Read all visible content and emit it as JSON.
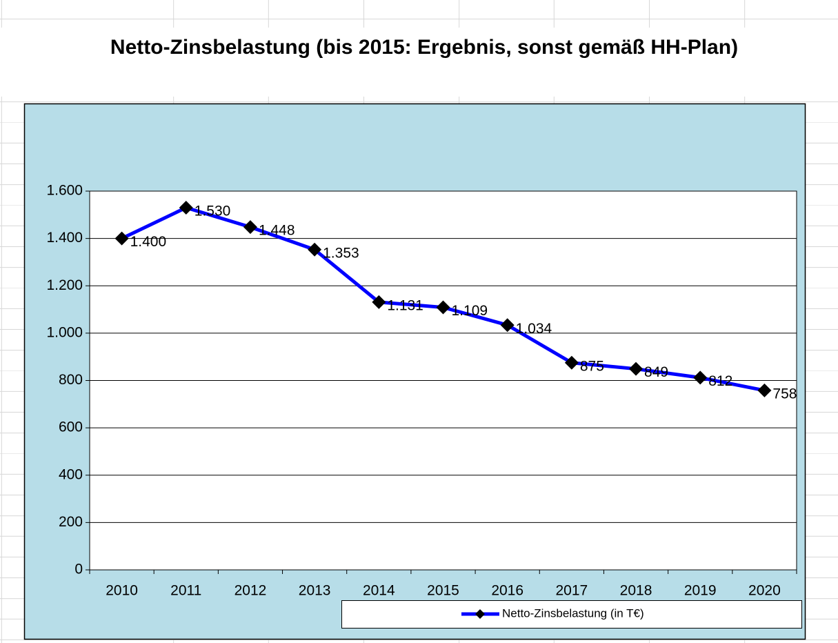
{
  "chart_data": {
    "type": "line",
    "title": "Netto-Zinsbelastung (bis 2015: Ergebnis, sonst gemäß HH-Plan)",
    "categories": [
      "2010",
      "2011",
      "2012",
      "2013",
      "2014",
      "2015",
      "2016",
      "2017",
      "2018",
      "2019",
      "2020"
    ],
    "series": [
      {
        "name": "Netto-Zinsbelastung (in T€)",
        "color": "#0000ff",
        "values": [
          1400,
          1530,
          1448,
          1353,
          1131,
          1109,
          1034,
          875,
          849,
          812,
          758
        ],
        "value_labels": [
          "1.400",
          "1.530",
          "1.448",
          "1.353",
          "1.131",
          "1.109",
          "1.034",
          "875",
          "849",
          "812",
          "758"
        ]
      }
    ],
    "ylim": [
      0,
      1600
    ],
    "yticks": [
      0,
      200,
      400,
      600,
      800,
      {
        "value": 1000,
        "label": "1.000"
      },
      {
        "value": 1200,
        "label": "1.200"
      },
      {
        "value": 1400,
        "label": "1.400"
      },
      {
        "value": 1600,
        "label": "1.600"
      }
    ],
    "grid": true,
    "legend": "bottom"
  }
}
